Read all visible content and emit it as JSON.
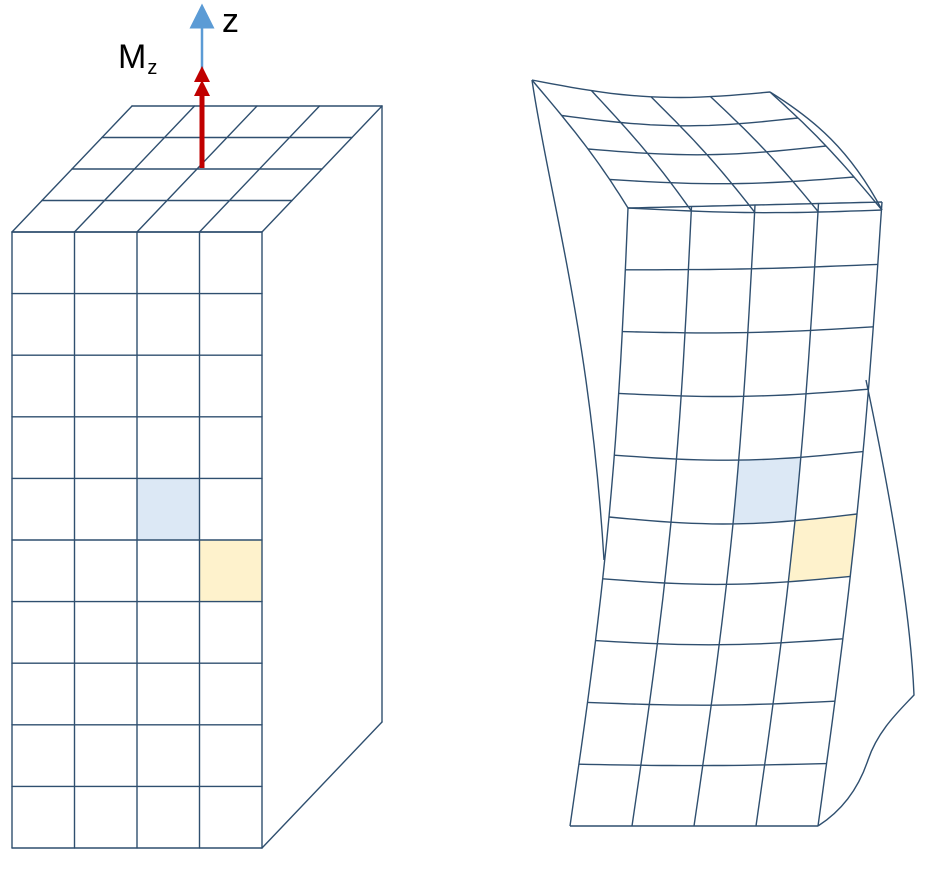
{
  "diagram": {
    "axis_label": "z",
    "moment_label": "M",
    "moment_subscript": "z",
    "colors": {
      "mesh_line": "#2f4f6f",
      "axis_arrow": "#5b9bd5",
      "moment_arrow": "#c00000",
      "highlight_blue": "#dce8f5",
      "highlight_yellow": "#fef2cc"
    },
    "undeformed_block": {
      "front_columns": 4,
      "front_rows": 10,
      "top_columns": 4,
      "top_rows": 4,
      "highlight_blue_cell": {
        "col": 2,
        "row": 4
      },
      "highlight_yellow_cell": {
        "col": 3,
        "row": 5
      }
    },
    "deformed_block": {
      "front_columns": 4,
      "front_rows": 10,
      "top_columns": 4,
      "top_rows": 4
    }
  }
}
